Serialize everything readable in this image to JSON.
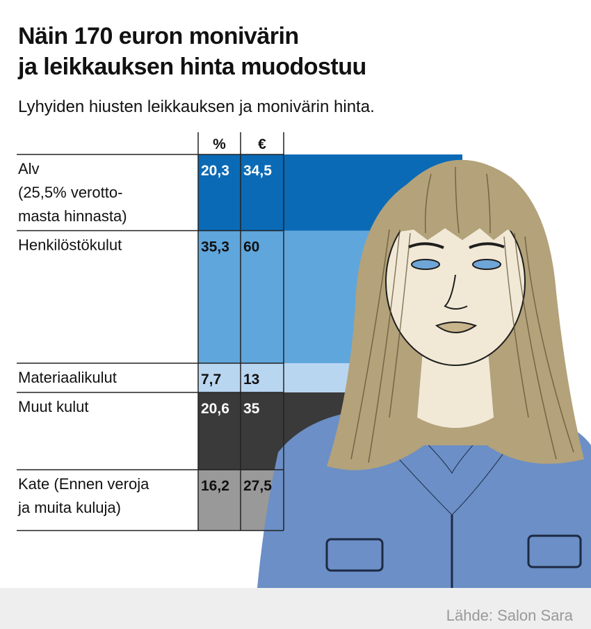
{
  "title_lines": [
    "Näin 170 euron monivärin",
    "ja leikkauksen hinta muodostuu"
  ],
  "subtitle": "Lyhyiden hiusten leikkauksen ja monivärin hinta.",
  "source": "Lähde: Salon Sara",
  "colors": {
    "alv": "#0a6ab6",
    "henkilostokulut": "#5fa6dc",
    "materiaalikulut": "#b9d6f1",
    "muut_kulut": "#3a3a3a",
    "kate": "#999999",
    "hair": "#b3a27a",
    "shirt": "#6b8fc6",
    "skin": "#f1e9d6"
  },
  "chart_data": {
    "type": "table",
    "title": "Näin 170 euron monivärin ja leikkauksen hinta muodostuu",
    "subtitle": "Lyhyiden hiusten leikkauksen ja monivärin hinta.",
    "columns": [
      "%",
      "€"
    ],
    "total_eur": 170,
    "rows": [
      {
        "label_lines": [
          "Alv",
          "(25,5% verotto-",
          "masta hinnasta)"
        ],
        "percent": 20.3,
        "percent_text": "20,3",
        "eur": 34.5,
        "eur_text": "34,5",
        "color": "#0a6ab6",
        "text_color": "#ffffff"
      },
      {
        "label_lines": [
          "Henkilöstökulut"
        ],
        "percent": 35.3,
        "percent_text": "35,3",
        "eur": 60,
        "eur_text": "60",
        "color": "#5fa6dc",
        "text_color": "#111111"
      },
      {
        "label_lines": [
          "Materiaalikulut"
        ],
        "percent": 7.7,
        "percent_text": "7,7",
        "eur": 13,
        "eur_text": "13",
        "color": "#b9d6f1",
        "text_color": "#111111"
      },
      {
        "label_lines": [
          "Muut kulut"
        ],
        "percent": 20.6,
        "percent_text": "20,6",
        "eur": 35,
        "eur_text": "35",
        "color": "#3a3a3a",
        "text_color": "#ffffff"
      },
      {
        "label_lines": [
          "Kate (Ennen veroja",
          "ja muita kuluja)"
        ],
        "percent": 16.2,
        "percent_text": "16,2",
        "eur": 27.5,
        "eur_text": "27,5",
        "color": "#999999",
        "text_color": "#111111"
      }
    ]
  }
}
